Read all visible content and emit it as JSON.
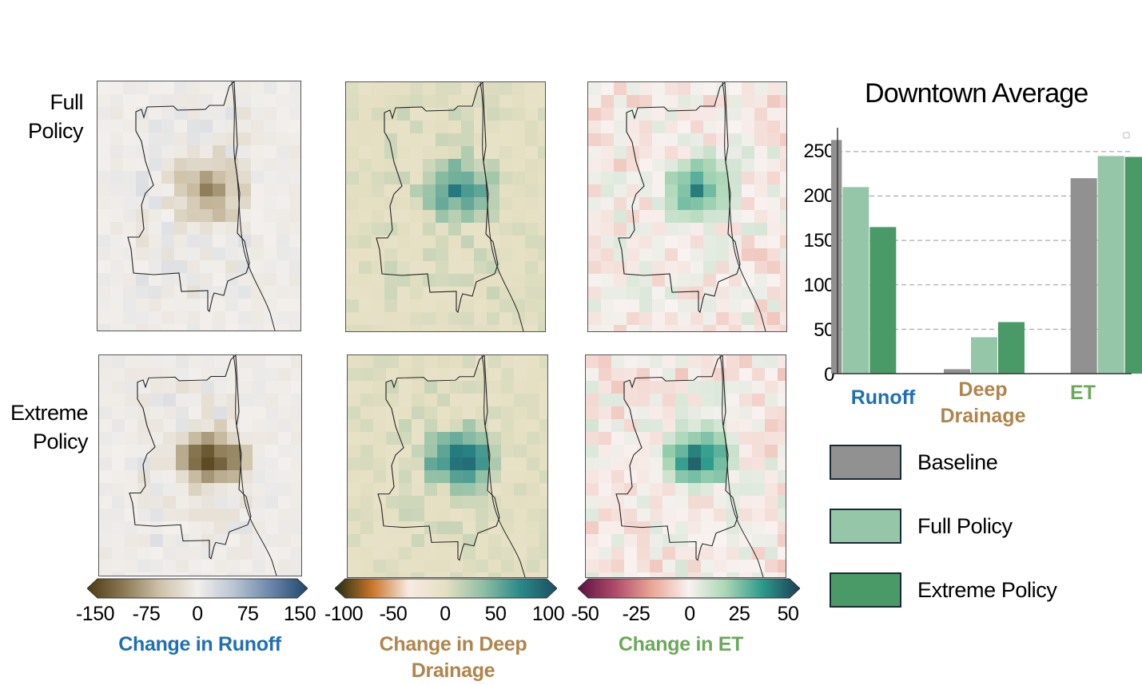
{
  "row_labels": {
    "full_line1": "Full",
    "full_line2": "Policy",
    "extreme_line1": "Extreme",
    "extreme_line2": "Policy"
  },
  "colorbars": {
    "runoff": {
      "ticks": [
        "-150",
        "-75",
        "0",
        "75",
        "150"
      ],
      "title_line1": "Change in Runoff",
      "title_color": "#1f6fb5",
      "stops": [
        "#4b3a14",
        "#8b7a55",
        "#cfc3aa",
        "#f2efec",
        "#b9c4d2",
        "#6a86a8",
        "#1f466e"
      ]
    },
    "drainage": {
      "ticks": [
        "-100",
        "-50",
        "0",
        "50",
        "100"
      ],
      "title_line1": "Change in Deep",
      "title_line2": "Drainage",
      "title_color": "#b0844a",
      "stops": [
        "#1e2d12",
        "#c9742a",
        "#f7ebe2",
        "#e4dfc2",
        "#8fbfa4",
        "#2a8a88",
        "#1b4d63"
      ]
    },
    "et": {
      "ticks": [
        "-50",
        "-25",
        "0",
        "25",
        "50"
      ],
      "title_line1": "Change in ET",
      "title_color": "#6aa95a",
      "stops": [
        "#5a1040",
        "#b04a6a",
        "#e9a696",
        "#f8f2f0",
        "#a9d6b5",
        "#2a9a8a",
        "#1e3a55"
      ]
    }
  },
  "chart": {
    "title": "Downtown Average",
    "y_ticks": [
      "0",
      "50",
      "100",
      "150",
      "200",
      "250"
    ],
    "categories": [
      {
        "line1": "Runoff",
        "line2": "",
        "color": "#1f6fb5"
      },
      {
        "line1": "Deep",
        "line2": "Drainage",
        "color": "#b0844a"
      },
      {
        "line1": "ET",
        "line2": "",
        "color": "#6aa95a"
      }
    ]
  },
  "legend": {
    "items": [
      {
        "label": "Baseline",
        "color": "#919191"
      },
      {
        "label": "Full Policy",
        "color": "#95c6a8"
      },
      {
        "label": "Extreme Policy",
        "color": "#4a9a68"
      }
    ]
  },
  "chart_data": {
    "type": "bar",
    "title": "Downtown Average",
    "categories": [
      "Runoff",
      "Deep Drainage",
      "ET"
    ],
    "series": [
      {
        "name": "Baseline",
        "color": "#919191",
        "values": [
          263,
          5,
          220
        ]
      },
      {
        "name": "Full Policy",
        "color": "#95c6a8",
        "values": [
          210,
          41,
          245
        ]
      },
      {
        "name": "Extreme Policy",
        "color": "#4a9a68",
        "values": [
          165,
          58,
          244
        ]
      }
    ],
    "ylim": [
      0,
      275
    ],
    "yticks": [
      0,
      50,
      100,
      150,
      200,
      250
    ],
    "grid": true,
    "xlabel": "",
    "ylabel": ""
  }
}
